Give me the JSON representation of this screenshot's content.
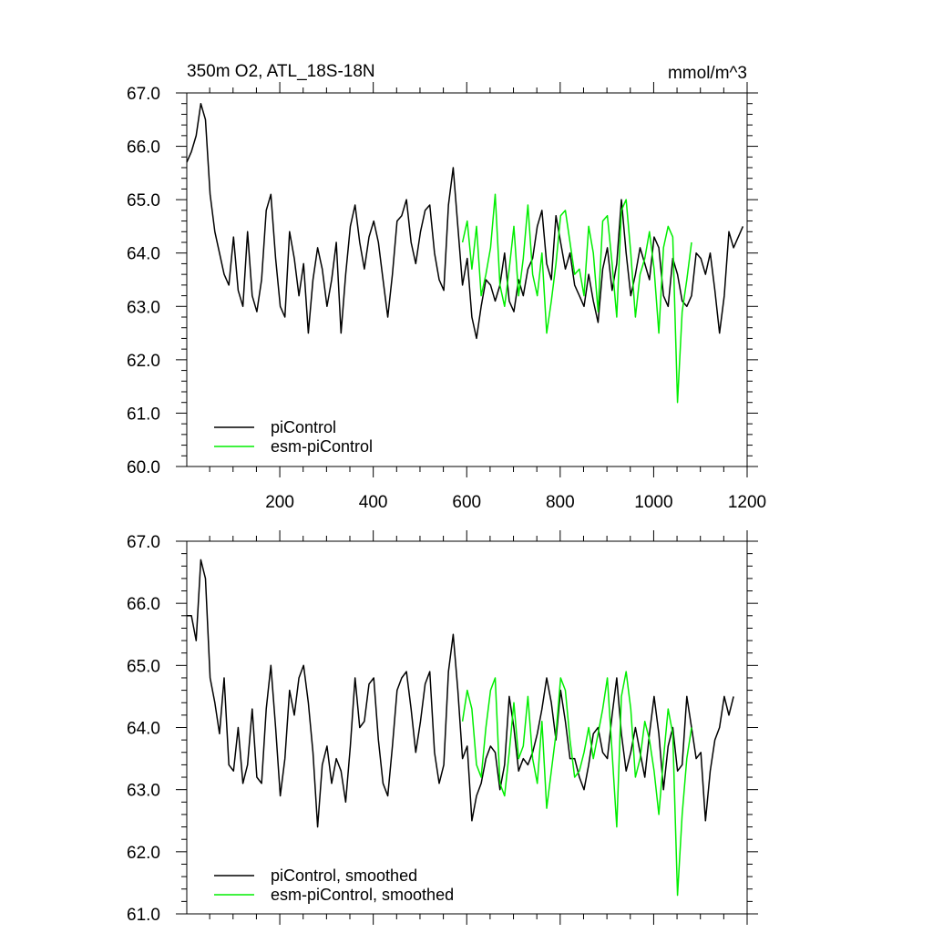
{
  "figure": {
    "title_left": "350m O2, ATL_18S-18N",
    "title_right": "mmol/m^3"
  },
  "colors": {
    "piControl": "#000000",
    "esm_piControl": "#00ee00"
  },
  "chart_data": [
    {
      "type": "line",
      "title": "350m O2, ATL_18S-18N",
      "units": "mmol/m^3",
      "xlim": [
        1,
        1200
      ],
      "ylim": [
        60.0,
        67.0
      ],
      "x_ticks": [
        200,
        400,
        600,
        800,
        1000,
        1200
      ],
      "x_tick_labels": [
        "200",
        "400",
        "600",
        "800",
        "1000",
        "1200"
      ],
      "y_ticks": [
        60.0,
        61.0,
        62.0,
        63.0,
        64.0,
        65.0,
        66.0,
        67.0
      ],
      "y_tick_labels": [
        "60.0",
        "61.0",
        "62.0",
        "63.0",
        "64.0",
        "65.0",
        "66.0",
        "67.0"
      ],
      "legend_position": "bottom-left",
      "series": [
        {
          "name": "piControl",
          "color": "#000000",
          "x_start": 1,
          "x_step": 10,
          "values": [
            65.7,
            65.9,
            66.2,
            66.8,
            66.5,
            65.1,
            64.4,
            64.0,
            63.6,
            63.4,
            64.3,
            63.3,
            63.0,
            64.4,
            63.2,
            62.9,
            63.5,
            64.8,
            65.1,
            63.9,
            63.0,
            62.8,
            64.4,
            63.9,
            63.2,
            63.8,
            62.5,
            63.5,
            64.1,
            63.7,
            63.0,
            63.5,
            64.2,
            62.5,
            63.6,
            64.5,
            64.9,
            64.2,
            63.7,
            64.3,
            64.6,
            64.2,
            63.5,
            62.8,
            63.6,
            64.6,
            64.7,
            65.0,
            64.2,
            63.8,
            64.4,
            64.8,
            64.9,
            64.0,
            63.5,
            63.3,
            64.9,
            65.6,
            64.5,
            63.4,
            63.9,
            62.8,
            62.4,
            63.0,
            63.5,
            63.4,
            63.1,
            63.4,
            64.0,
            63.1,
            62.9,
            63.5,
            63.2,
            63.7,
            63.9,
            64.5,
            64.8,
            63.8,
            63.5,
            64.7,
            64.2,
            63.7,
            64.0,
            63.4,
            63.2,
            63.0,
            63.6,
            63.1,
            62.7,
            63.7,
            64.1,
            63.3,
            63.8,
            65.0,
            64.0,
            63.2,
            63.6,
            64.1,
            63.8,
            63.5,
            64.3,
            64.1,
            63.2,
            63.0,
            63.9,
            63.6,
            63.1,
            63.0,
            63.2,
            64.0,
            63.9,
            63.6,
            64.0,
            63.3,
            62.5,
            63.2,
            64.4,
            64.1,
            64.3,
            64.5
          ]
        },
        {
          "name": "esm-piControl",
          "color": "#00ee00",
          "x_start": 591,
          "x_step": 10,
          "values": [
            64.2,
            64.6,
            63.7,
            64.5,
            63.2,
            63.6,
            64.1,
            65.1,
            63.4,
            63.0,
            63.7,
            64.5,
            63.2,
            63.9,
            64.9,
            63.6,
            63.2,
            64.0,
            62.5,
            63.1,
            63.8,
            64.7,
            64.8,
            64.2,
            63.6,
            63.7,
            63.2,
            64.5,
            64.0,
            62.9,
            64.6,
            64.7,
            63.8,
            62.8,
            64.8,
            65.0,
            64.0,
            62.8,
            63.6,
            63.9,
            64.4,
            63.7,
            62.5,
            64.1,
            64.5,
            64.3,
            61.2,
            62.9,
            63.5,
            64.2
          ]
        }
      ]
    },
    {
      "type": "line",
      "xlim": [
        1,
        1200
      ],
      "ylim": [
        61.0,
        67.0
      ],
      "y_ticks": [
        61.0,
        62.0,
        63.0,
        64.0,
        65.0,
        66.0,
        67.0
      ],
      "y_tick_labels": [
        "61.0",
        "62.0",
        "63.0",
        "64.0",
        "65.0",
        "66.0",
        "67.0"
      ],
      "legend_position": "bottom-left",
      "series": [
        {
          "name": "piControl, smoothed",
          "color": "#000000",
          "x_start": 1,
          "x_step": 10,
          "values": [
            65.8,
            65.8,
            65.4,
            66.7,
            66.4,
            64.8,
            64.4,
            63.9,
            64.8,
            63.4,
            63.3,
            64.0,
            63.1,
            63.4,
            64.3,
            63.2,
            63.1,
            64.3,
            65.0,
            64.0,
            62.9,
            63.5,
            64.6,
            64.2,
            64.8,
            65.0,
            64.4,
            63.6,
            62.4,
            63.4,
            63.7,
            63.1,
            63.5,
            63.3,
            62.8,
            63.7,
            64.8,
            64.0,
            64.1,
            64.7,
            64.8,
            63.8,
            63.1,
            62.9,
            63.7,
            64.6,
            64.8,
            64.9,
            64.3,
            63.6,
            64.1,
            64.7,
            64.9,
            63.6,
            63.1,
            63.4,
            64.9,
            65.5,
            64.6,
            63.5,
            63.7,
            62.5,
            62.9,
            63.1,
            63.5,
            63.7,
            63.6,
            63.0,
            63.4,
            64.5,
            64.0,
            63.3,
            63.5,
            63.4,
            63.6,
            63.9,
            64.3,
            64.8,
            64.4,
            63.8,
            64.6,
            64.1,
            63.5,
            63.5,
            63.2,
            63.0,
            63.4,
            63.9,
            64.0,
            63.6,
            63.5,
            64.2,
            64.8,
            63.9,
            63.3,
            63.6,
            64.0,
            63.6,
            63.2,
            63.9,
            64.5,
            63.9,
            63.0,
            63.7,
            64.0,
            63.3,
            63.4,
            64.5,
            64.0,
            63.5,
            63.6,
            62.5,
            63.3,
            63.8,
            64.0,
            64.5,
            64.2,
            64.5
          ]
        },
        {
          "name": "esm-piControl, smoothed",
          "color": "#00ee00",
          "x_start": 591,
          "x_step": 10,
          "values": [
            64.1,
            64.6,
            64.3,
            63.4,
            63.2,
            64.0,
            64.6,
            64.8,
            63.1,
            62.9,
            63.6,
            64.4,
            63.5,
            63.7,
            64.5,
            63.5,
            63.1,
            64.1,
            62.7,
            63.3,
            63.9,
            64.8,
            64.6,
            63.8,
            63.2,
            63.3,
            63.6,
            64.0,
            63.5,
            63.9,
            64.3,
            64.8,
            63.6,
            62.4,
            64.5,
            64.9,
            64.3,
            63.2,
            63.5,
            64.1,
            63.8,
            63.3,
            62.6,
            63.5,
            64.3,
            63.9,
            61.3,
            62.6,
            63.5,
            64.0
          ]
        }
      ]
    }
  ]
}
